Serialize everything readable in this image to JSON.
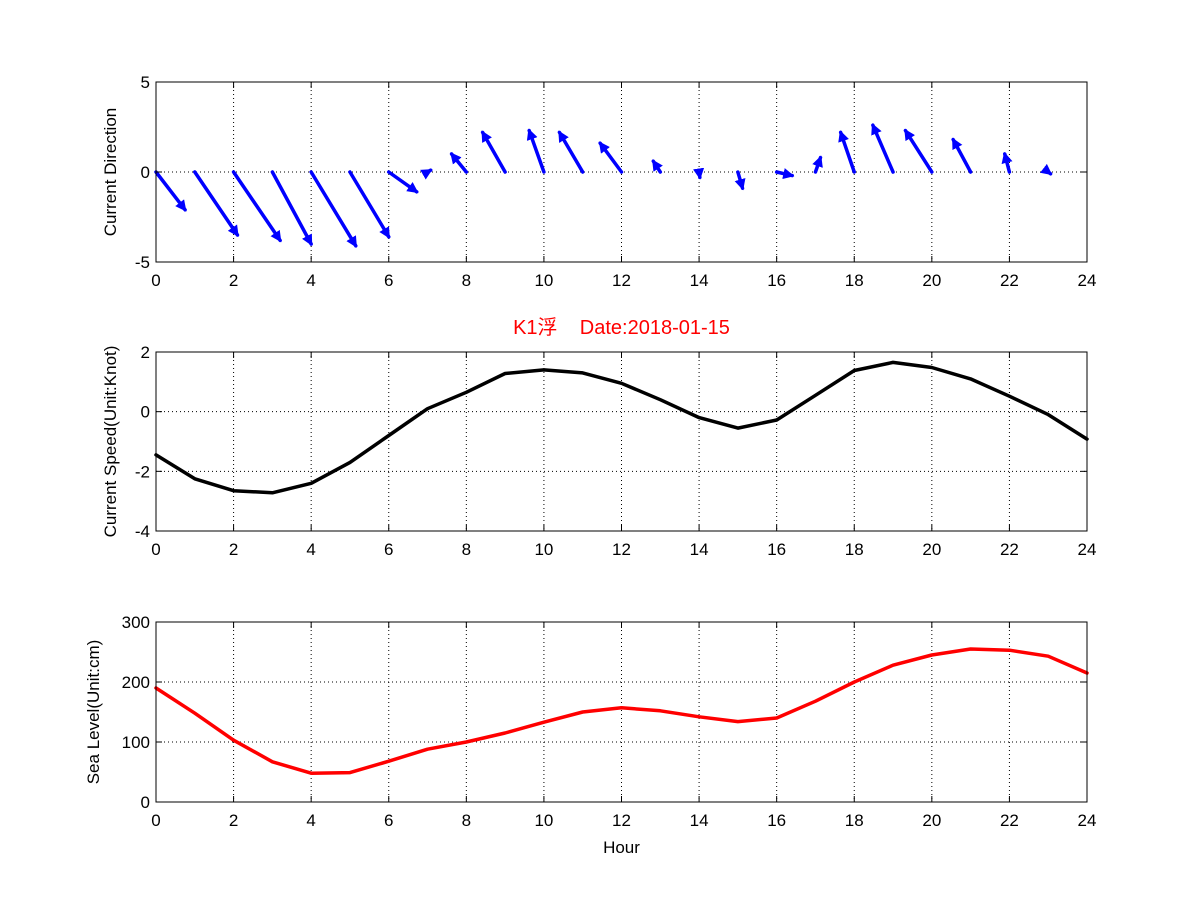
{
  "colors": {
    "direction": "#0000ff",
    "speed": "#000000",
    "sea_level": "#ff0000",
    "title": "#ff0000"
  },
  "chart_data": [
    {
      "type": "quiver",
      "ylabel": "Current Direction",
      "xlim": [
        0,
        24
      ],
      "ylim": [
        -5,
        5
      ],
      "xticks": [
        0,
        2,
        4,
        6,
        8,
        10,
        12,
        14,
        16,
        18,
        20,
        22,
        24
      ],
      "yticks": [
        -5,
        0,
        5
      ],
      "grid": true,
      "x": [
        0,
        1,
        2,
        3,
        4,
        5,
        6,
        7,
        8,
        9,
        10,
        11,
        12,
        13,
        14,
        15,
        16,
        17,
        18,
        19,
        20,
        21,
        22,
        23,
        24
      ],
      "u": [
        0.75,
        1.1,
        1.2,
        1.0,
        1.15,
        1.0,
        0.72,
        0.08,
        -0.38,
        -0.58,
        -0.38,
        -0.6,
        -0.55,
        -0.18,
        0.02,
        0.12,
        0.4,
        0.13,
        -0.35,
        -0.52,
        -0.68,
        -0.45,
        -0.12,
        0.06,
        0.0
      ],
      "v": [
        -2.1,
        -3.5,
        -3.8,
        -4.0,
        -4.1,
        -3.6,
        -1.1,
        0.1,
        1.0,
        2.2,
        2.3,
        2.2,
        1.6,
        0.6,
        -0.3,
        -0.9,
        -0.2,
        0.8,
        2.2,
        2.6,
        2.3,
        1.8,
        1.0,
        -0.1,
        0.0
      ]
    },
    {
      "type": "line",
      "title": "K1浮    Date:2018-01-15",
      "ylabel": "Current Speed(Unit:Knot)",
      "xlim": [
        0,
        24
      ],
      "ylim": [
        -4,
        2
      ],
      "xticks": [
        0,
        2,
        4,
        6,
        8,
        10,
        12,
        14,
        16,
        18,
        20,
        22,
        24
      ],
      "yticks": [
        -4,
        -2,
        0,
        2
      ],
      "grid": true,
      "x": [
        0,
        1,
        2,
        3,
        4,
        5,
        6,
        7,
        8,
        9,
        10,
        11,
        12,
        13,
        14,
        15,
        16,
        17,
        18,
        19,
        20,
        21,
        22,
        23,
        24
      ],
      "y": [
        -1.45,
        -2.25,
        -2.65,
        -2.72,
        -2.4,
        -1.7,
        -0.8,
        0.1,
        0.65,
        1.28,
        1.4,
        1.3,
        0.95,
        0.4,
        -0.2,
        -0.55,
        -0.28,
        0.55,
        1.38,
        1.65,
        1.48,
        1.1,
        0.52,
        -0.1,
        -0.92
      ]
    },
    {
      "type": "line",
      "ylabel": "Sea Level(Unit:cm)",
      "xlabel": "Hour",
      "xlim": [
        0,
        24
      ],
      "ylim": [
        0,
        300
      ],
      "xticks": [
        0,
        2,
        4,
        6,
        8,
        10,
        12,
        14,
        16,
        18,
        20,
        22,
        24
      ],
      "yticks": [
        0,
        100,
        200,
        300
      ],
      "grid": true,
      "x": [
        0,
        1,
        2,
        3,
        4,
        5,
        6,
        7,
        8,
        9,
        10,
        11,
        12,
        13,
        14,
        15,
        16,
        17,
        18,
        19,
        20,
        21,
        22,
        23,
        24
      ],
      "y": [
        190,
        148,
        103,
        67,
        48,
        49,
        68,
        88,
        100,
        115,
        133,
        150,
        157,
        152,
        142,
        134,
        140,
        168,
        200,
        228,
        245,
        255,
        253,
        243,
        215
      ]
    }
  ]
}
